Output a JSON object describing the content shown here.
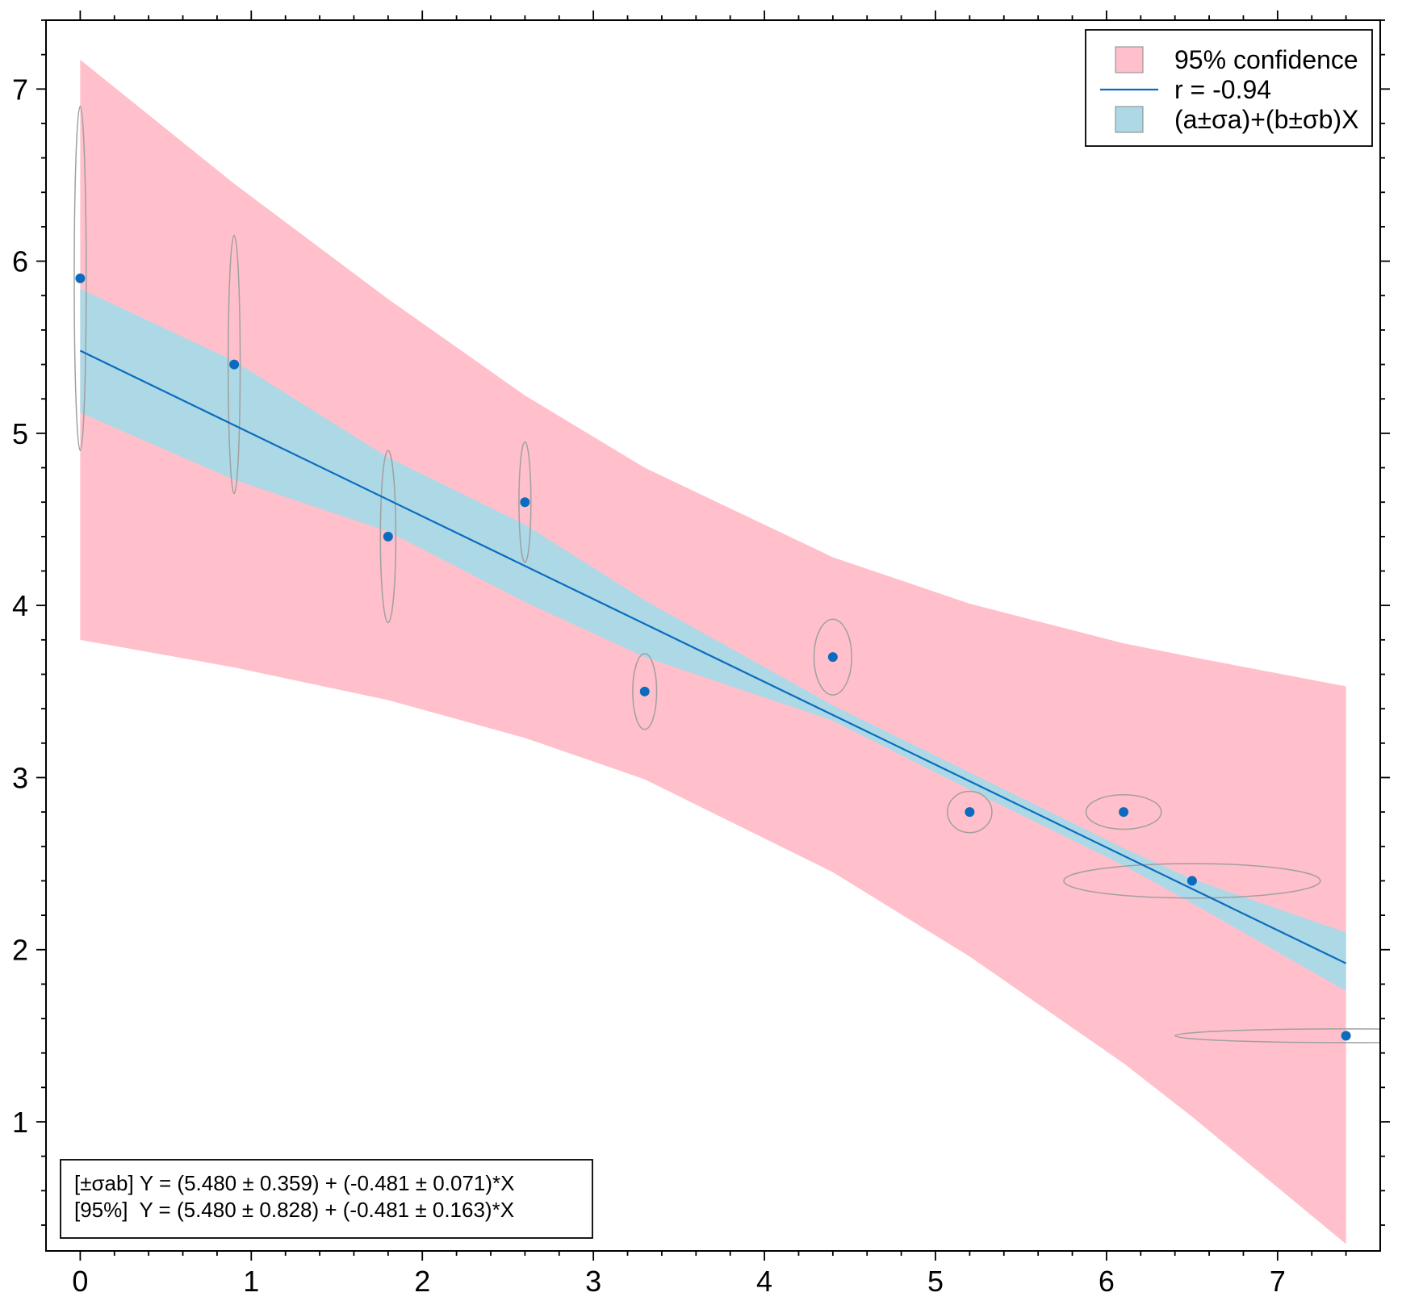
{
  "chart_data": {
    "type": "scatter",
    "title": "",
    "xlabel": "",
    "ylabel": "",
    "xlim": [
      -0.2,
      7.6
    ],
    "ylim": [
      0.25,
      7.4
    ],
    "x_ticks": [
      0,
      1,
      2,
      3,
      4,
      5,
      6,
      7
    ],
    "y_ticks": [
      1,
      2,
      3,
      4,
      5,
      6,
      7
    ],
    "grid": false,
    "legend_position": "top-right",
    "legend": [
      {
        "label": "95% confidence",
        "kind": "patch",
        "color": "#ffc0cb"
      },
      {
        "label": "r = -0.94",
        "kind": "line",
        "color": "#0b6cbf"
      },
      {
        "label": "(a±σa)+(b±σb)X",
        "kind": "patch",
        "color": "#add8e6"
      }
    ],
    "points": [
      {
        "x": 0.0,
        "y": 5.9,
        "sx": 0.035,
        "sy": 1.0
      },
      {
        "x": 0.9,
        "y": 5.4,
        "sx": 0.035,
        "sy": 0.75
      },
      {
        "x": 1.8,
        "y": 4.4,
        "sx": 0.045,
        "sy": 0.5
      },
      {
        "x": 2.6,
        "y": 4.6,
        "sx": 0.035,
        "sy": 0.35
      },
      {
        "x": 3.3,
        "y": 3.5,
        "sx": 0.07,
        "sy": 0.22
      },
      {
        "x": 4.4,
        "y": 3.7,
        "sx": 0.11,
        "sy": 0.22
      },
      {
        "x": 5.2,
        "y": 2.8,
        "sx": 0.13,
        "sy": 0.12
      },
      {
        "x": 6.1,
        "y": 2.8,
        "sx": 0.22,
        "sy": 0.1
      },
      {
        "x": 6.5,
        "y": 2.4,
        "sx": 0.75,
        "sy": 0.1
      },
      {
        "x": 7.4,
        "y": 1.5,
        "sx": 1.0,
        "sy": 0.04
      }
    ],
    "fit_line": {
      "intercept": 5.48,
      "slope": -0.481,
      "x_range": [
        0,
        7.4
      ]
    },
    "band_sigma": {
      "x": [
        0,
        0.9,
        1.8,
        2.6,
        3.3,
        4.4,
        5.2,
        6.1,
        6.5,
        7.4
      ],
      "upper": [
        5.84,
        5.42,
        4.86,
        4.47,
        4.03,
        3.42,
        3.03,
        2.59,
        2.41,
        2.1
      ],
      "lower": [
        5.12,
        4.73,
        4.43,
        4.02,
        3.7,
        3.33,
        2.93,
        2.49,
        2.27,
        1.76
      ]
    },
    "band_95": {
      "x": [
        0,
        0.9,
        1.8,
        2.6,
        3.3,
        4.4,
        5.2,
        6.1,
        6.5,
        7.4
      ],
      "upper": [
        7.17,
        6.45,
        5.78,
        5.22,
        4.8,
        4.28,
        4.01,
        3.78,
        3.7,
        3.53
      ],
      "lower": [
        3.8,
        3.64,
        3.45,
        3.23,
        2.99,
        2.45,
        1.96,
        1.34,
        1.03,
        0.29
      ]
    },
    "equations": [
      "[±σab] Y = (5.480 ± 0.359) + (-0.481 ± 0.071)*X",
      "[95%]  Y = (5.480 ± 0.828) + (-0.481 ± 0.163)*X"
    ],
    "colors": {
      "band_95": "#ffc0cb",
      "band_sigma": "#add8e6",
      "line": "#0b6cbf",
      "points": "#0b6cbf",
      "ellipse": "#a0a0a0",
      "frame": "#000000"
    }
  }
}
